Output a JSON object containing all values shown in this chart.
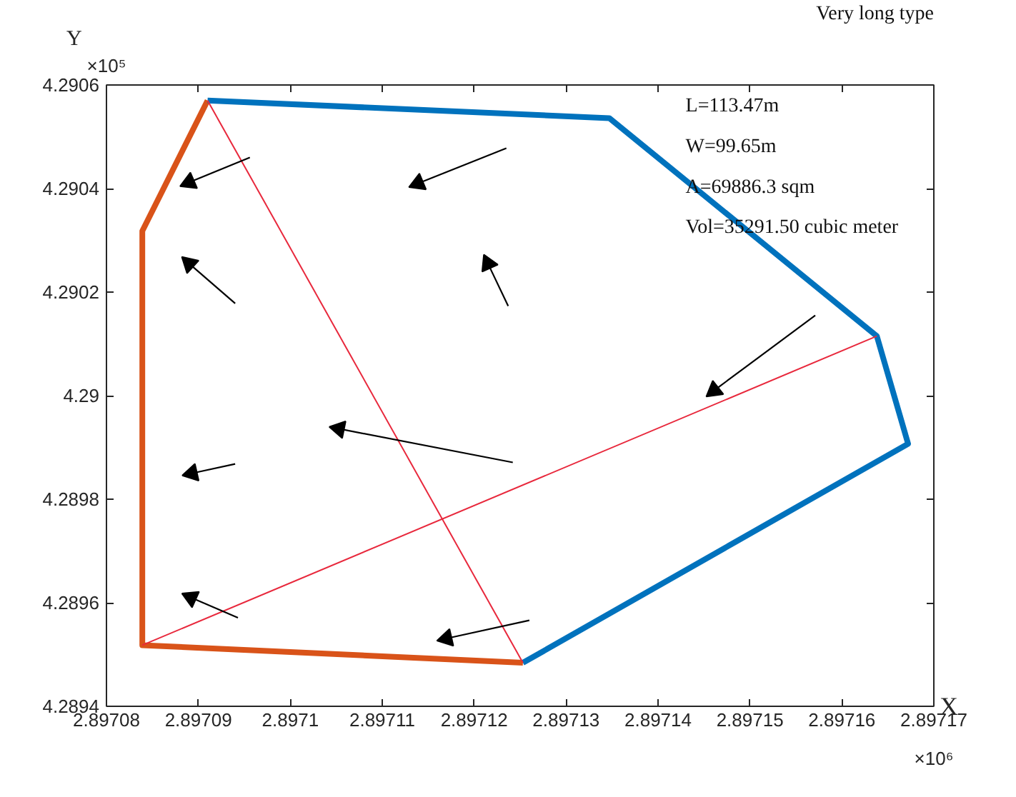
{
  "chart_data": {
    "type": "line",
    "xlabel": "X",
    "ylabel": "Y",
    "annotations": [
      "×10⁶",
      "×10⁵",
      "Very long type",
      "L=113.47m",
      "W=99.65m",
      "A=69886.3 sqm",
      "Vol=35291.50 cubic meter"
    ],
    "xlim": [
      2.89708,
      2.89717
    ],
    "xticks": [
      2.89708,
      2.89709,
      2.8971,
      2.89711,
      2.89712,
      2.89713,
      2.89714,
      2.89715,
      2.89716,
      2.89717
    ],
    "ylim": [
      4.2894,
      4.2906
    ],
    "yticks": [
      4.2894,
      4.2896,
      4.2898,
      4.29,
      4.2902,
      4.2904,
      4.2906
    ],
    "grid": false,
    "marker": "none",
    "line_style": "solid",
    "series": [
      {
        "color": "#d95319",
        "x": [
          2.897091,
          2.8970839,
          2.8970839,
          2.8971253
        ],
        "values": [
          4.29057,
          4.290318,
          4.289518,
          4.289484
        ]
      },
      {
        "color": "#0072bd",
        "x": [
          2.897091,
          2.8971347,
          2.8971638,
          2.8971672,
          2.8971253
        ],
        "values": [
          4.29057,
          4.290536,
          4.290115,
          4.289907,
          4.289484
        ]
      },
      {
        "color": "#e8283c",
        "x": [
          2.897091,
          2.8971253
        ],
        "values": [
          4.29057,
          4.289484
        ]
      },
      {
        "color": "#e8283c",
        "x": [
          2.8970839,
          2.8971638
        ],
        "values": [
          4.289518,
          4.290115
        ]
      },
      {
        "color": "#000000",
        "marker": "triangle",
        "x": [
          2.8970956,
          2.897089
        ],
        "values": [
          4.29046,
          4.290412
        ]
      },
      {
        "color": "#000000",
        "marker": "triangle",
        "x": [
          2.8971235,
          2.8971139
        ],
        "values": [
          4.290478,
          4.29041
        ]
      },
      {
        "color": "#000000",
        "marker": "triangle",
        "x": [
          2.897094,
          2.897089
        ],
        "values": [
          4.290178,
          4.290255
        ]
      },
      {
        "color": "#000000",
        "marker": "triangle",
        "x": [
          2.8971237,
          2.8971215
        ],
        "values": [
          4.290173,
          4.290255
        ]
      },
      {
        "color": "#000000",
        "marker": "triangle",
        "x": [
          2.8971571,
          2.8971461
        ],
        "values": [
          4.290155,
          4.29001
        ]
      },
      {
        "color": "#000000",
        "marker": "triangle",
        "x": [
          2.8971242,
          2.8971053
        ],
        "values": [
          4.289871,
          4.289936
        ]
      },
      {
        "color": "#000000",
        "marker": "triangle",
        "x": [
          2.897094,
          2.8970893
        ],
        "values": [
          4.289868,
          4.28985
        ]
      },
      {
        "color": "#000000",
        "marker": "triangle",
        "x": [
          2.8970943,
          2.8970892
        ],
        "values": [
          4.289571,
          4.28961
        ]
      },
      {
        "color": "#000000",
        "marker": "triangle",
        "x": [
          2.897126,
          2.897117
        ],
        "values": [
          4.289566,
          4.289531
        ]
      }
    ]
  }
}
